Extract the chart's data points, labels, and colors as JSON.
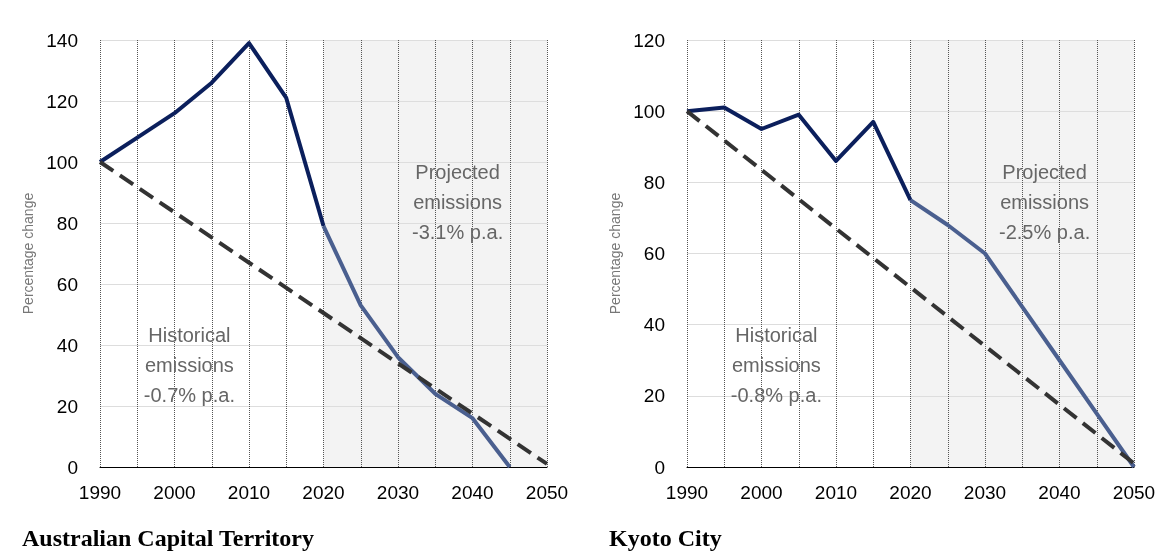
{
  "chart_data": [
    {
      "type": "line",
      "title": "Australian Capital Territory",
      "ylabel": "Percentage change",
      "series": [
        {
          "x": [
            1990,
            1995,
            2000,
            2005,
            2010,
            2015,
            2020
          ],
          "values": [
            100,
            108,
            116,
            126,
            139,
            121,
            79
          ],
          "color": "#0b1f5c"
        },
        {
          "x": [
            2020,
            2025,
            2030,
            2035,
            2040,
            2045
          ],
          "values": [
            79,
            53,
            36,
            24,
            16,
            0
          ],
          "color": "#4a5f8f"
        },
        {
          "x": [
            1990,
            2050
          ],
          "values": [
            100,
            1
          ],
          "color": "#333333",
          "line_style": "dashed"
        }
      ],
      "xlim": [
        1990,
        2050
      ],
      "xticks": [
        1990,
        {
          "value": 1995,
          "label": null
        },
        2000,
        {
          "value": 2005,
          "label": null
        },
        2010,
        {
          "value": 2015,
          "label": null
        },
        2020,
        {
          "value": 2025,
          "label": null
        },
        2030,
        {
          "value": 2035,
          "label": null
        },
        2040,
        {
          "value": 2045,
          "label": null
        },
        2050
      ],
      "ylim": [
        0,
        140
      ],
      "yticks": [
        0,
        20,
        40,
        60,
        80,
        100,
        120,
        140
      ],
      "bands": [
        {
          "axis": "x",
          "from": 2020,
          "to": 2050,
          "color": "#f3f3f3"
        }
      ],
      "annotations": [
        "Historical\nemissions\n-0.7% p.a.",
        "Projected\nemissions\n-3.1% p.a."
      ],
      "grid": true,
      "marker": "none"
    },
    {
      "type": "line",
      "title": "Kyoto City",
      "ylabel": "Percentage change",
      "series": [
        {
          "x": [
            1990,
            1995,
            2000,
            2005,
            2010,
            2015,
            2020
          ],
          "values": [
            100,
            101,
            95,
            99,
            86,
            97,
            75
          ],
          "color": "#0b1f5c"
        },
        {
          "x": [
            2020,
            2025,
            2030,
            2035,
            2040,
            2045,
            2050
          ],
          "values": [
            75,
            68,
            60,
            45,
            30,
            15,
            0
          ],
          "color": "#4a5f8f"
        },
        {
          "x": [
            1990,
            2050
          ],
          "values": [
            100,
            1
          ],
          "color": "#333333",
          "line_style": "dashed"
        }
      ],
      "xlim": [
        1990,
        2050
      ],
      "xticks": [
        1990,
        {
          "value": 1995,
          "label": null
        },
        2000,
        {
          "value": 2005,
          "label": null
        },
        2010,
        {
          "value": 2015,
          "label": null
        },
        2020,
        {
          "value": 2025,
          "label": null
        },
        2030,
        {
          "value": 2035,
          "label": null
        },
        2040,
        {
          "value": 2045,
          "label": null
        },
        2050
      ],
      "ylim": [
        0,
        120
      ],
      "yticks": [
        0,
        20,
        40,
        60,
        80,
        100,
        120
      ],
      "bands": [
        {
          "axis": "x",
          "from": 2020,
          "to": 2050,
          "color": "#f3f3f3"
        }
      ],
      "annotations": [
        "Historical\nemissions\n-0.8% p.a.",
        "Projected\nemissions\n-2.5% p.a."
      ],
      "grid": true,
      "marker": "none"
    }
  ]
}
